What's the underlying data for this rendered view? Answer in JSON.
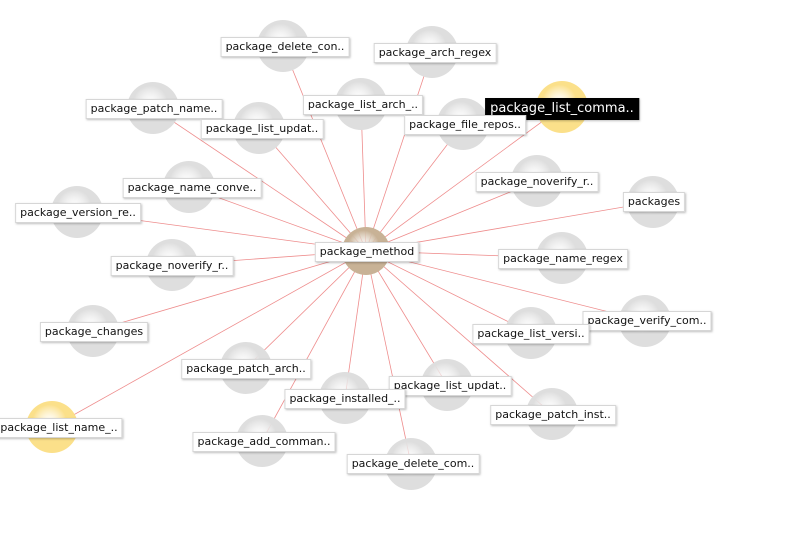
{
  "graph": {
    "colors": {
      "edge": "#ee8c8c",
      "node_default": "#dedede",
      "node_center": "#c8b296",
      "node_highlight": "#fbe08a"
    },
    "center": {
      "id": "package_method",
      "label": "package_method",
      "kind": "center"
    },
    "nodes": [
      {
        "id": "n01",
        "label": "package_delete_con..",
        "kind": "default"
      },
      {
        "id": "n02",
        "label": "package_arch_regex",
        "kind": "default"
      },
      {
        "id": "n03",
        "label": "package_patch_name..",
        "kind": "default"
      },
      {
        "id": "n04",
        "label": "package_list_arch_..",
        "kind": "default"
      },
      {
        "id": "n05",
        "label": "package_list_comma..",
        "kind": "highlight",
        "selected": true
      },
      {
        "id": "n06",
        "label": "package_list_updat..",
        "kind": "default"
      },
      {
        "id": "n07",
        "label": "package_file_repos..",
        "kind": "default"
      },
      {
        "id": "n08",
        "label": "package_name_conve..",
        "kind": "default"
      },
      {
        "id": "n09",
        "label": "package_noverify_r..",
        "kind": "default"
      },
      {
        "id": "n10",
        "label": "packages",
        "kind": "default"
      },
      {
        "id": "n11",
        "label": "package_version_re..",
        "kind": "default"
      },
      {
        "id": "n12",
        "label": "package_noverify_r..",
        "kind": "default"
      },
      {
        "id": "n13",
        "label": "package_name_regex",
        "kind": "default"
      },
      {
        "id": "n14",
        "label": "package_verify_com..",
        "kind": "default"
      },
      {
        "id": "n15",
        "label": "package_changes",
        "kind": "default"
      },
      {
        "id": "n16",
        "label": "package_list_versi..",
        "kind": "default"
      },
      {
        "id": "n17",
        "label": "package_patch_arch..",
        "kind": "default"
      },
      {
        "id": "n18",
        "label": "package_list_updat..",
        "kind": "default"
      },
      {
        "id": "n19",
        "label": "package_installed_..",
        "kind": "default"
      },
      {
        "id": "n20",
        "label": "package_patch_inst..",
        "kind": "default"
      },
      {
        "id": "n21",
        "label": "package_list_name_..",
        "kind": "highlight"
      },
      {
        "id": "n22",
        "label": "package_add_comman..",
        "kind": "default"
      },
      {
        "id": "n23",
        "label": "package_delete_com..",
        "kind": "default"
      }
    ]
  }
}
